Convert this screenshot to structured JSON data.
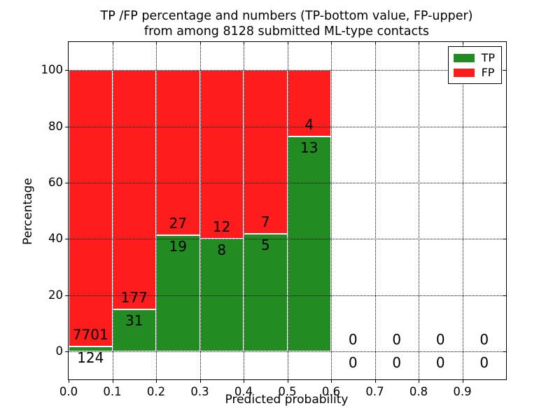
{
  "chart_data": {
    "type": "bar",
    "stacked": true,
    "title_line1": "TP /FP percentage and numbers (TP-bottom value, FP-upper)",
    "title_line2": "from among 8128 submitted ML-type contacts",
    "xlabel": "Predicted probability",
    "ylabel": "Percentage",
    "total_submitted": 8128,
    "bins": [
      0.0,
      0.1,
      0.2,
      0.3,
      0.4,
      0.5,
      0.6,
      0.7,
      0.8,
      0.9
    ],
    "bin_width": 0.1,
    "series": [
      {
        "name": "TP",
        "color": "#228B22",
        "counts": [
          124,
          31,
          19,
          8,
          5,
          13,
          0,
          0,
          0,
          0
        ]
      },
      {
        "name": "FP",
        "color": "#FF1C1C",
        "counts": [
          7701,
          177,
          27,
          12,
          7,
          4,
          0,
          0,
          0,
          0
        ]
      }
    ],
    "bar_total_percent": 100,
    "xtick_labels": [
      "0.0",
      "0.1",
      "0.2",
      "0.3",
      "0.4",
      "0.5",
      "0.6",
      "0.7",
      "0.8",
      "0.9"
    ],
    "ytick_labels": [
      "0",
      "20",
      "40",
      "60",
      "80",
      "100"
    ],
    "xlim": [
      0,
      1.0
    ],
    "ylim": [
      -10,
      110
    ],
    "grid": true,
    "grid_style": "dotted",
    "legend_position": "upper right"
  }
}
